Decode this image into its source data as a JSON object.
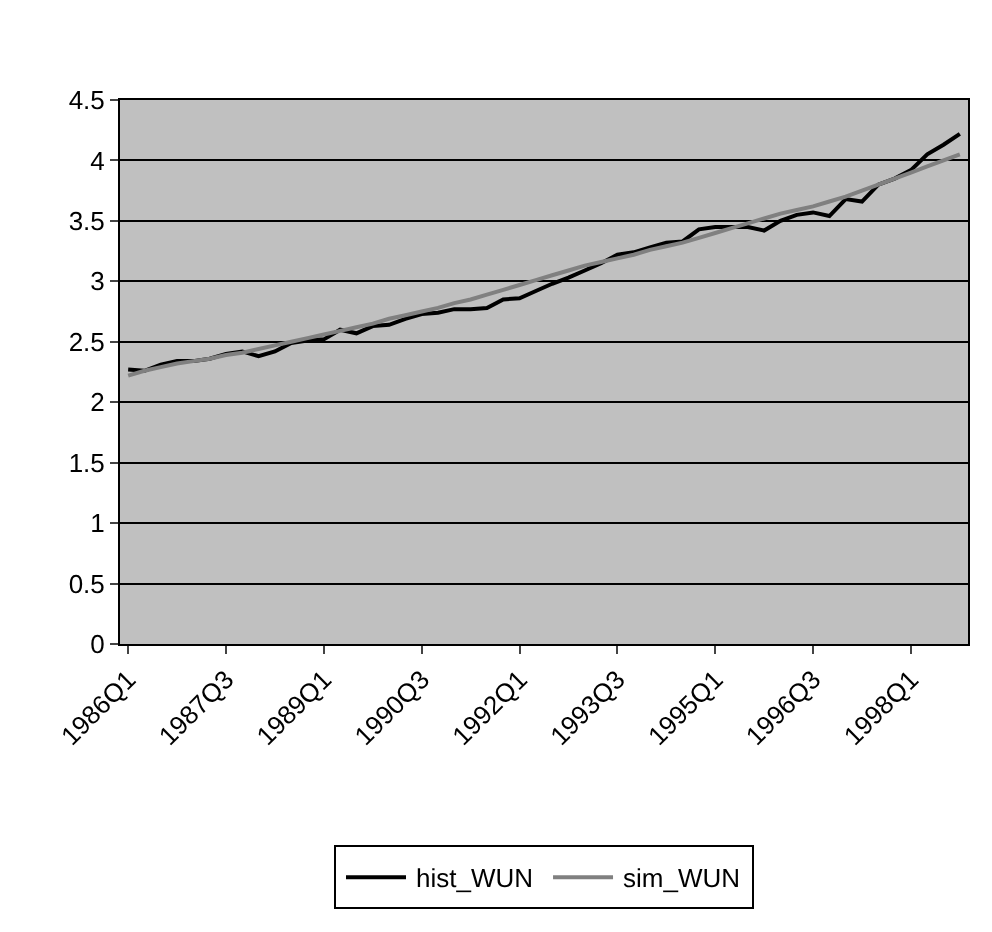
{
  "chart_data": {
    "type": "line",
    "categories": [
      "1986Q1",
      null,
      null,
      null,
      null,
      null,
      "1987Q3",
      null,
      null,
      null,
      null,
      null,
      "1989Q1",
      null,
      null,
      null,
      null,
      null,
      "1990Q3",
      null,
      null,
      null,
      null,
      null,
      "1992Q1",
      null,
      null,
      null,
      null,
      null,
      "1993Q3",
      null,
      null,
      null,
      null,
      null,
      "1995Q1",
      null,
      null,
      null,
      null,
      null,
      "1996Q3",
      null,
      null,
      null,
      null,
      null,
      "1998Q1",
      null,
      null,
      null
    ],
    "series": [
      {
        "name": "hist_WUN",
        "color": "#000000",
        "values": [
          2.27,
          2.26,
          2.31,
          2.34,
          2.34,
          2.36,
          2.4,
          2.42,
          2.38,
          2.42,
          2.49,
          2.51,
          2.52,
          2.6,
          2.57,
          2.63,
          2.64,
          2.69,
          2.73,
          2.74,
          2.77,
          2.77,
          2.78,
          2.85,
          2.86,
          2.92,
          2.98,
          3.03,
          3.09,
          3.15,
          3.22,
          3.24,
          3.28,
          3.32,
          3.33,
          3.43,
          3.45,
          3.45,
          3.45,
          3.42,
          3.5,
          3.55,
          3.57,
          3.54,
          3.68,
          3.66,
          3.8,
          3.85,
          3.92,
          4.05,
          4.13,
          4.22
        ]
      },
      {
        "name": "sim_WUN",
        "color": "#808080",
        "values": [
          2.22,
          2.26,
          2.29,
          2.32,
          2.34,
          2.36,
          2.39,
          2.41,
          2.44,
          2.47,
          2.5,
          2.53,
          2.56,
          2.59,
          2.62,
          2.65,
          2.69,
          2.72,
          2.75,
          2.78,
          2.82,
          2.85,
          2.89,
          2.93,
          2.97,
          3.01,
          3.05,
          3.09,
          3.13,
          3.16,
          3.19,
          3.22,
          3.26,
          3.29,
          3.32,
          3.36,
          3.4,
          3.44,
          3.48,
          3.52,
          3.56,
          3.59,
          3.62,
          3.66,
          3.7,
          3.75,
          3.8,
          3.85,
          3.9,
          3.95,
          4.0,
          4.05
        ]
      }
    ],
    "ylim": [
      0,
      4.5
    ],
    "yticks": [
      0,
      0.5,
      1,
      1.5,
      2,
      2.5,
      3,
      3.5,
      4,
      4.5
    ],
    "grid": "y",
    "legend": "bottom",
    "marker": "none",
    "line_style": "solid"
  }
}
